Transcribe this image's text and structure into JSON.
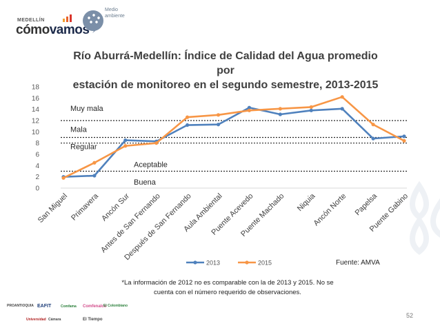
{
  "header": {
    "brand_small": "MEDELLÍN",
    "brand_big_a": "cómo",
    "brand_big_b": "vamos",
    "badge_line1": "Medio",
    "badge_line2": "ambiente"
  },
  "chart_data": {
    "type": "line",
    "title_line1": "Río Aburrá-Medellín: Índice de Calidad del Agua promedio por",
    "title_line2": "estación de monitoreo en el segundo semestre, 2013-2015",
    "categories": [
      "San Miguel",
      "Primavera",
      "Ancón Sur",
      "Antes de San Fernando",
      "Después de San Fernando",
      "Aula Ambiental",
      "Puente Acevedo",
      "Puente Machado",
      "Niquia",
      "Ancón Norte",
      "Papelsa",
      "Puente Gabino"
    ],
    "ylim": [
      0,
      18
    ],
    "yticks": [
      "0",
      "2",
      "4",
      "6",
      "8",
      "10",
      "12",
      "14",
      "16",
      "18"
    ],
    "series": [
      {
        "name": "2013",
        "color": "#4f81bd",
        "values": [
          2.0,
          2.2,
          8.5,
          8.3,
          11.2,
          11.3,
          14.3,
          13.1,
          13.8,
          14.1,
          8.8,
          9.2
        ]
      },
      {
        "name": "2015",
        "color": "#f79646",
        "values": [
          1.8,
          4.5,
          7.5,
          8.0,
          12.6,
          13.0,
          13.8,
          14.1,
          14.4,
          16.2,
          11.3,
          8.4
        ]
      }
    ],
    "thresholds": [
      3,
      8,
      9,
      12
    ],
    "bands": [
      {
        "label": "Muy mala",
        "y": 14.2,
        "pos": "left"
      },
      {
        "label": "Mala",
        "y": 10.5,
        "pos": "left"
      },
      {
        "label": "Regular",
        "y": 7.4,
        "pos": "left"
      },
      {
        "label": "Aceptable",
        "y": 4.2,
        "pos": "center"
      },
      {
        "label": "Buena",
        "y": 1.1,
        "pos": "center"
      }
    ],
    "legend": [
      "2013",
      "2015"
    ]
  },
  "source": "Fuente: AMVA",
  "footnote_line1": "*La información de 2012 no es comparable con la de 2013 y 2015. No se",
  "footnote_line2": "cuenta con el número requerido de observaciones.",
  "page_number": "52",
  "sponsors": [
    "PROANTIOQUIA",
    "EAFIT",
    "Comfama",
    "Comfenalco",
    "El Colombiano",
    "Cámara",
    "El Tiempo",
    "Universidad"
  ]
}
